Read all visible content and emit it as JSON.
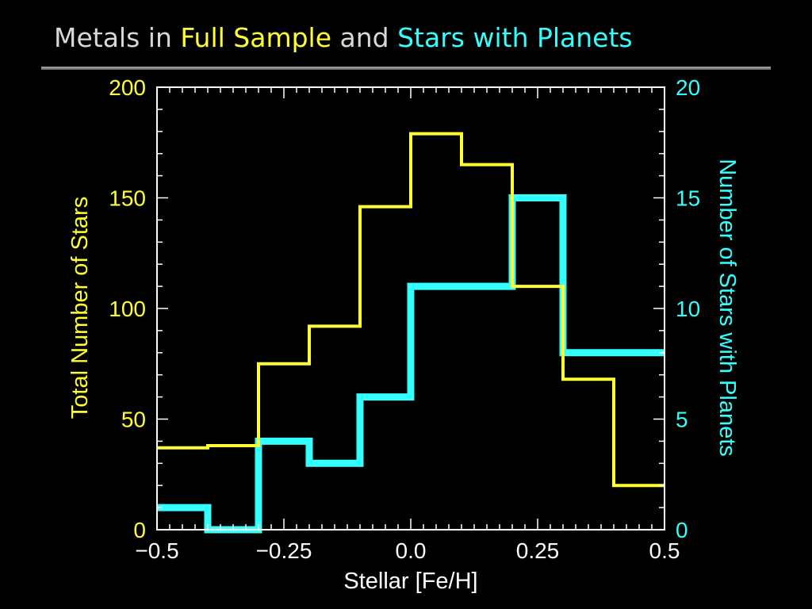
{
  "title": {
    "part1": "Metals in ",
    "part2": "Full Sample",
    "part3": " and ",
    "part4": "Stars with Planets"
  },
  "colors": {
    "full_sample": "#ffff33",
    "planets": "#33ffff",
    "axes": "#ffffff",
    "title_gray": "#d8d8d8"
  },
  "chart_data": {
    "type": "histogram",
    "bin_edges": [
      -0.5,
      -0.4,
      -0.3,
      -0.2,
      -0.1,
      0.0,
      0.1,
      0.2,
      0.3,
      0.4,
      0.5
    ],
    "xlabel": "Stellar  [Fe/H]",
    "ylabel_left": "Total Number of Stars",
    "ylabel_right": "Number of Stars with Planets",
    "xlim": [
      -0.5,
      0.5
    ],
    "ylim_left": [
      0,
      200
    ],
    "ylim_right": [
      0,
      20
    ],
    "x_ticks": [
      -0.5,
      -0.25,
      0.0,
      0.25,
      0.5
    ],
    "x_tick_labels": [
      "−0.5",
      "−0.25",
      "0.0",
      "0.25",
      "0.5"
    ],
    "y_ticks_left": [
      0,
      50,
      100,
      150,
      200
    ],
    "y_tick_labels_left": [
      "0",
      "50",
      "100",
      "150",
      "200"
    ],
    "y_ticks_right": [
      0,
      5,
      10,
      15,
      20
    ],
    "y_tick_labels_right": [
      "0",
      "5",
      "10",
      "15",
      "20"
    ],
    "series": [
      {
        "name": "Full Sample",
        "axis": "left",
        "values": [
          37,
          38,
          75,
          92,
          146,
          179,
          165,
          110,
          68,
          20
        ]
      },
      {
        "name": "Stars with Planets",
        "axis": "right",
        "values": [
          1,
          0,
          4,
          3,
          6,
          11,
          11,
          15,
          8,
          8
        ]
      }
    ]
  }
}
